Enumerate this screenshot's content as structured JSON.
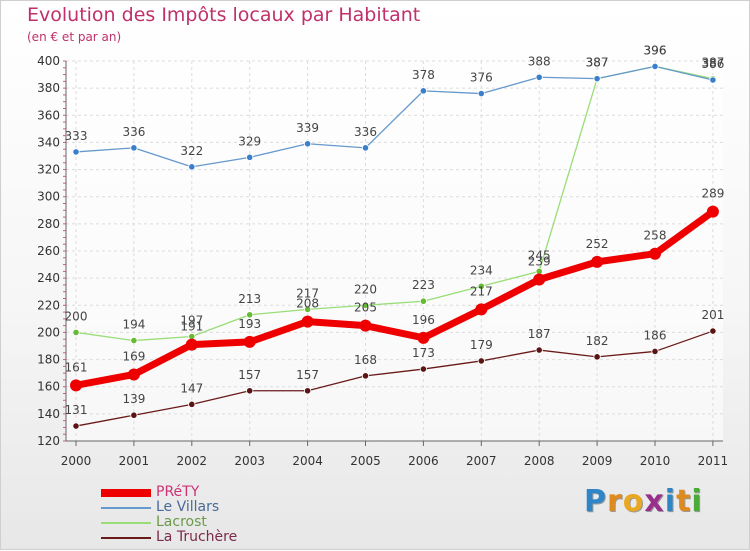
{
  "header": {
    "title": "Evolution des Impôts locaux par Habitant",
    "subtitle": "(en € et par an)"
  },
  "brand": {
    "letters": [
      "P",
      "r",
      "o",
      "x",
      "i",
      "t",
      "i"
    ],
    "colors": [
      "#2e86c9",
      "#e08a1e",
      "#e8a820",
      "#9a2e8c",
      "#2e86c9",
      "#e08a1e",
      "#4aaa3a"
    ]
  },
  "chart_data": {
    "type": "line",
    "title": "Evolution des Impôts locaux par Habitant",
    "subtitle": "(en € et par an)",
    "xlabel": "",
    "ylabel": "",
    "ylim": [
      120,
      400
    ],
    "yticks": [
      120,
      140,
      160,
      180,
      200,
      220,
      240,
      260,
      280,
      300,
      320,
      340,
      360,
      380,
      400
    ],
    "grid": true,
    "legend_position": "bottom-left",
    "categories": [
      "2000",
      "2001",
      "2002",
      "2003",
      "2004",
      "2005",
      "2006",
      "2007",
      "2008",
      "2009",
      "2010",
      "2011"
    ],
    "series": [
      {
        "name": "La Truchère",
        "color": "#6b1a1a",
        "marker_color": "#5a1414",
        "values": [
          131,
          139,
          147,
          157,
          157,
          168,
          173,
          179,
          187,
          182,
          186,
          201
        ],
        "labels": [
          "131",
          "139",
          "147",
          "157",
          "157",
          "168",
          "173",
          "179",
          "187",
          "182",
          "186",
          "201"
        ]
      },
      {
        "name": "Lacrost",
        "color": "#99dd77",
        "marker_color": "#66bb33",
        "values": [
          200,
          194,
          197,
          213,
          217,
          220,
          223,
          234,
          245,
          387,
          396,
          387
        ],
        "labels": [
          "200",
          "194",
          "197",
          "213",
          "217",
          "220",
          "223",
          "234",
          "245",
          "387",
          "396",
          "387"
        ]
      },
      {
        "name": "Le Villars",
        "color": "#6699cc",
        "marker_color": "#3a7fcc",
        "values": [
          333,
          336,
          322,
          329,
          339,
          336,
          378,
          376,
          388,
          387,
          396,
          386
        ],
        "labels": [
          "333",
          "336",
          "322",
          "329",
          "339",
          "336",
          "378",
          "376",
          "388",
          "387",
          "396",
          "386"
        ]
      },
      {
        "name": "PRéTY",
        "color": "#ee0000",
        "marker_color": "#ee0000",
        "values": [
          161,
          169,
          191,
          193,
          208,
          205,
          196,
          217,
          239,
          252,
          258,
          289
        ],
        "labels": [
          "161",
          "169",
          "191",
          "193",
          "208",
          "205",
          "196",
          "217",
          "239",
          "252",
          "258",
          "289"
        ]
      }
    ]
  }
}
